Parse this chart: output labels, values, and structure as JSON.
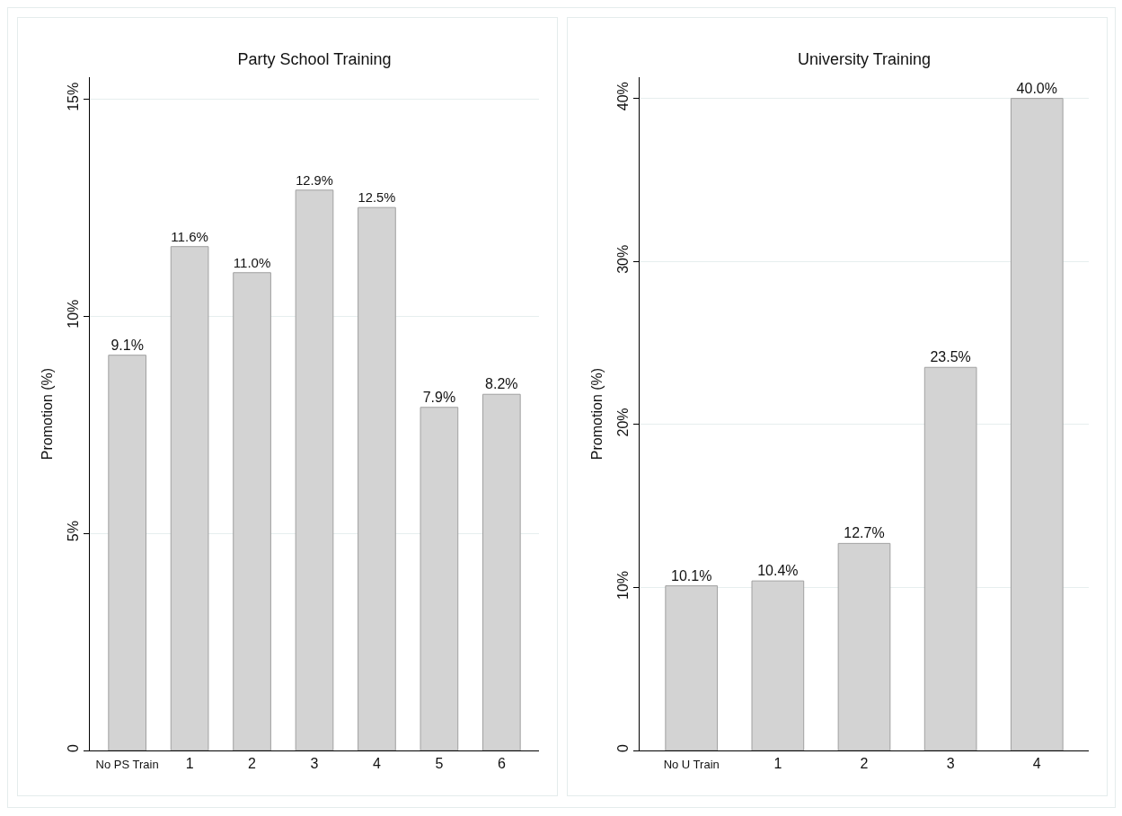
{
  "chart_data": [
    {
      "type": "bar",
      "title": "Party School Training",
      "ylabel": "Promotion (%)",
      "categories": [
        "No PS Train",
        "1",
        "2",
        "3",
        "4",
        "5",
        "6"
      ],
      "values": [
        9.1,
        11.6,
        11.0,
        12.9,
        12.5,
        7.9,
        8.2
      ],
      "value_labels": [
        "9.1%",
        "11.6%",
        "11.0%",
        "12.9%",
        "12.5%",
        "7.9%",
        "8.2%"
      ],
      "color": "#d3d3d3",
      "ylim": [
        0,
        15.5
      ],
      "yticks": [
        0,
        {
          "value": 5,
          "label": "5%"
        },
        {
          "value": 10,
          "label": "10%"
        },
        {
          "value": 15,
          "label": "15%"
        }
      ],
      "grid": "y"
    },
    {
      "type": "bar",
      "title": "University Training",
      "ylabel": "Promotion (%)",
      "categories": [
        "No U Train",
        "1",
        "2",
        "3",
        "4"
      ],
      "values": [
        10.1,
        10.4,
        12.7,
        23.5,
        40.0
      ],
      "value_labels": [
        "10.1%",
        "10.4%",
        "12.7%",
        "23.5%",
        "40.0%"
      ],
      "color": "#d3d3d3",
      "ylim": [
        0,
        41.3
      ],
      "yticks": [
        0,
        {
          "value": 10,
          "label": "10%"
        },
        {
          "value": 20,
          "label": "20%"
        },
        {
          "value": 30,
          "label": "30%"
        },
        {
          "value": 40,
          "label": "40%"
        }
      ],
      "grid": "y"
    }
  ]
}
